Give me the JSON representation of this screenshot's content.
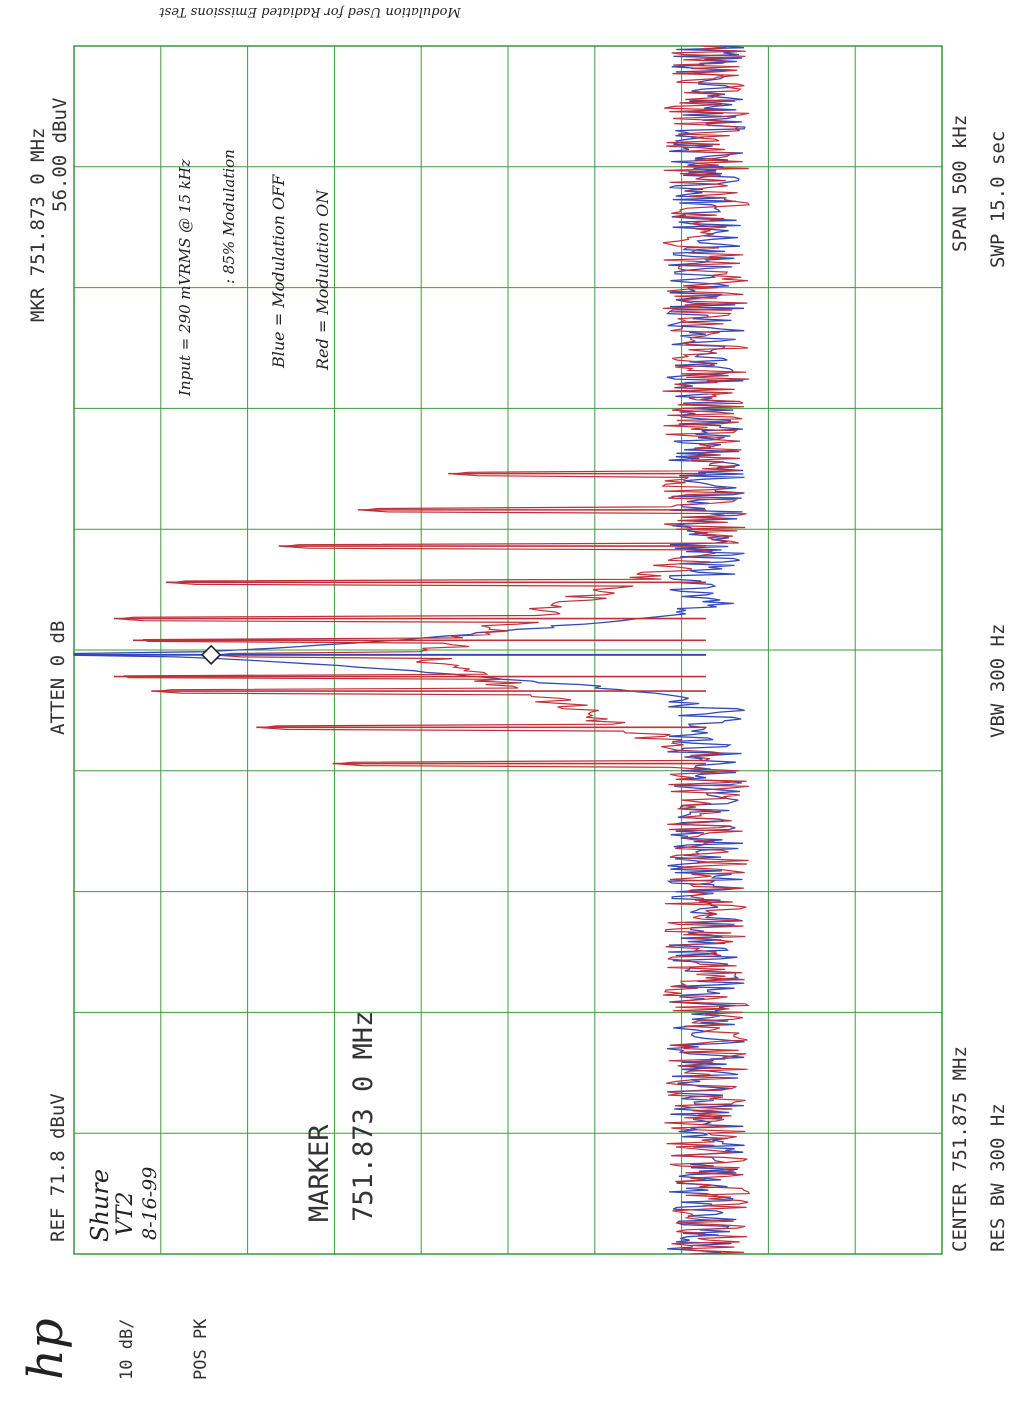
{
  "header_text": "Modulation Used for Radiated Emissions Test",
  "instrument": {
    "logo": "hp",
    "scale": "10 dB/",
    "detector": "POS PK",
    "ref_level": "REF  71.8 dBuV",
    "atten": "ATTEN 0 dB",
    "marker_readout_line1": "MKR 751.873 0 MHz",
    "marker_readout_line2": "56.00 dBuV",
    "marker_label": "MARKER",
    "marker_value": "751.873 0 MHz",
    "center": "CENTER 751.875 MHz",
    "res_bw": "RES BW 300  Hz",
    "vbw": "VBW 300  Hz",
    "span": "SPAN 500 kHz",
    "sweep": "SWP 15.0  sec"
  },
  "handwritten": {
    "device_line1": "Shure",
    "device_line2": "VT2",
    "date": "8-16-99",
    "input_line1": "Input = 290 mVRMS @ 15 kHz",
    "input_line2": ": 85% Modulation",
    "legend_blue": "Blue = Modulation OFF",
    "legend_red": "Red = Modulation ON"
  },
  "colors": {
    "grid": "#3f9a3f",
    "frame": "#2f8a2f",
    "modulation_off": "#3548b8",
    "modulation_on": "#c0303a"
  },
  "chart_data": {
    "type": "line",
    "title": "Modulation Used for Radiated Emissions Test",
    "xlabel": "CENTER 751.875 MHz   SPAN 500 kHz",
    "ylabel": "REF 71.8 dBuV  10 dB/",
    "x_unit": "MHz",
    "y_unit": "dBuV",
    "xlim": [
      751.625,
      752.125
    ],
    "ylim": [
      -28.2,
      71.8
    ],
    "grid": true,
    "marker": {
      "x": 751.873,
      "y": 56.0
    },
    "carrier": {
      "x": 751.873,
      "y": 71.8
    },
    "noise_floor_dbuv": -1,
    "series": [
      {
        "name": "Blue = Modulation OFF",
        "color": "#3548b8",
        "shape": "carrier_skirt",
        "peak_x": 751.873,
        "peak_y": 71.8,
        "floor_y": -1
      },
      {
        "name": "Red = Modulation ON",
        "color": "#c0303a",
        "shape": "sideband_lines",
        "sidebands": [
          {
            "x": 751.828,
            "y": 42.0
          },
          {
            "x": 751.843,
            "y": 50.8
          },
          {
            "x": 751.858,
            "y": 62.9
          },
          {
            "x": 751.864,
            "y": 67.2
          },
          {
            "x": 751.873,
            "y": 56.0
          },
          {
            "x": 751.879,
            "y": 65.0
          },
          {
            "x": 751.888,
            "y": 67.2
          },
          {
            "x": 751.903,
            "y": 61.2
          },
          {
            "x": 751.918,
            "y": 48.2
          },
          {
            "x": 751.933,
            "y": 39.1
          },
          {
            "x": 751.948,
            "y": 28.7
          }
        ],
        "floor_y": -1
      }
    ]
  }
}
